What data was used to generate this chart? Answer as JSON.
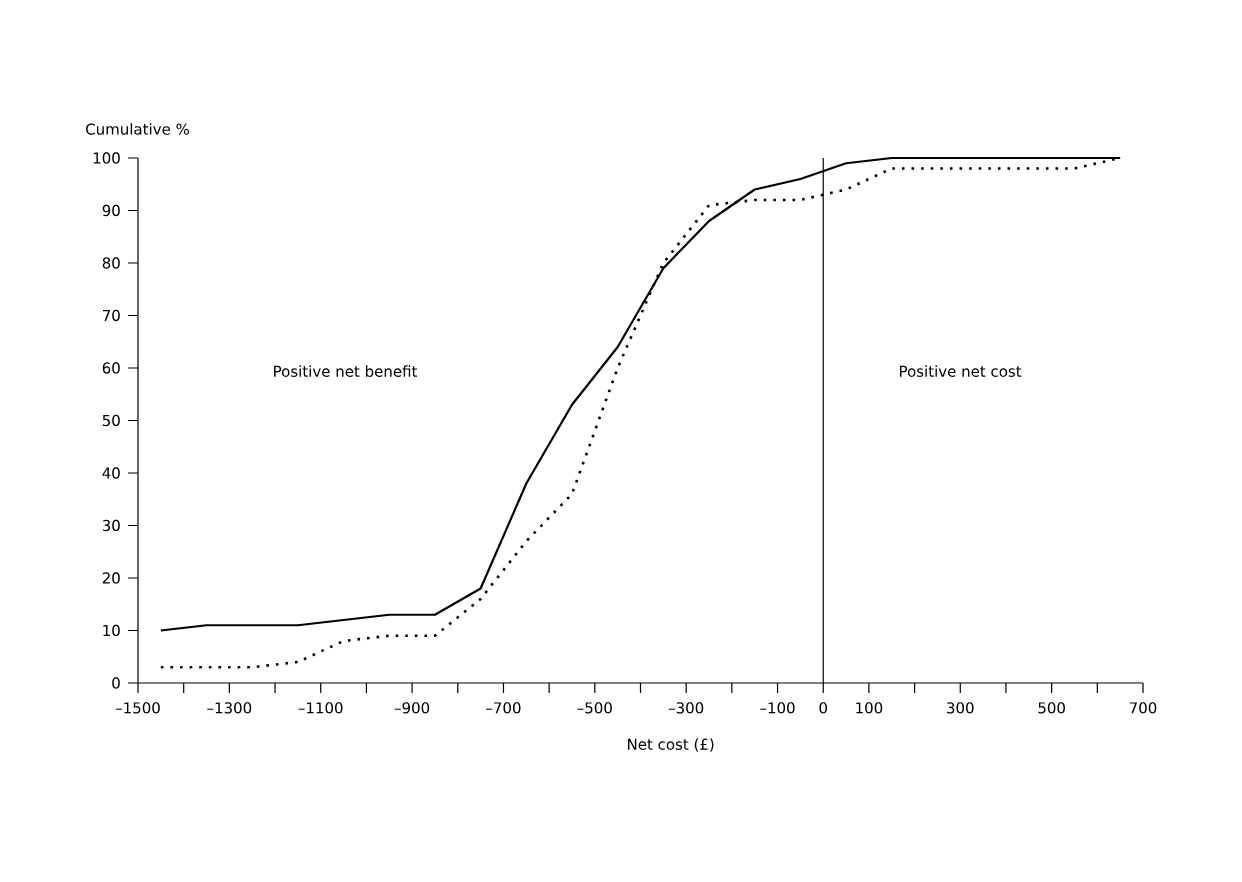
{
  "chart_data": {
    "type": "line",
    "xlabel": "Net cost (£)",
    "ylabel": "Cumulative %",
    "annotations": [
      "Positive net benefit",
      "Positive net cost"
    ],
    "x": [
      -1450,
      -1350,
      -1250,
      -1150,
      -1050,
      -950,
      -850,
      -750,
      -650,
      -550,
      -450,
      -350,
      -250,
      -150,
      -50,
      50,
      150,
      250,
      350,
      450,
      550,
      650
    ],
    "series": [
      {
        "color": "#000000",
        "line_style": "solid",
        "values": [
          10,
          11,
          11,
          11,
          12,
          13,
          13,
          18,
          38,
          53,
          64,
          79,
          88,
          94,
          96,
          99,
          100,
          100,
          100,
          100,
          100,
          100
        ]
      },
      {
        "color": "#000000",
        "line_style": "dotted",
        "values": [
          3,
          3,
          3,
          4,
          8,
          9,
          9,
          16,
          27,
          36,
          60,
          80,
          91,
          92,
          92,
          94,
          98,
          98,
          98,
          98,
          98,
          100
        ]
      }
    ],
    "marker": "none",
    "xlim": [
      -1500,
      700
    ],
    "ylim": [
      0,
      100
    ],
    "xticks": [
      {
        "value": -1500,
        "label": "–1500"
      },
      {
        "value": -1400,
        "label": null
      },
      {
        "value": -1300,
        "label": "–1300"
      },
      {
        "value": -1200,
        "label": null
      },
      {
        "value": -1100,
        "label": "–1100"
      },
      {
        "value": -1000,
        "label": null
      },
      {
        "value": -900,
        "label": "–900"
      },
      {
        "value": -800,
        "label": null
      },
      {
        "value": -700,
        "label": "–700"
      },
      {
        "value": -600,
        "label": null
      },
      {
        "value": -500,
        "label": "–500"
      },
      {
        "value": -400,
        "label": null
      },
      {
        "value": -300,
        "label": "–300"
      },
      {
        "value": -200,
        "label": null
      },
      {
        "value": -100,
        "label": "–100"
      },
      0,
      100,
      {
        "value": 200,
        "label": null
      },
      300,
      {
        "value": 400,
        "label": null
      },
      500,
      {
        "value": 600,
        "label": null
      },
      700
    ],
    "yticks": [
      0,
      10,
      20,
      30,
      40,
      50,
      60,
      70,
      80,
      90,
      100
    ],
    "ref_lines": [
      {
        "axis": "x",
        "value": 0
      }
    ]
  }
}
